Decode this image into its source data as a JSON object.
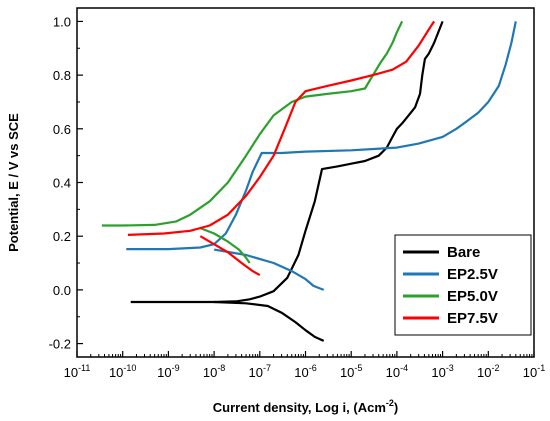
{
  "chart_data": {
    "type": "line",
    "title": "",
    "xlabel_main": "Current density, Log i, (Acm",
    "xlabel_sup": "-2",
    "xlabel_end": ")",
    "ylabel": "Potential, E / V vs SCE",
    "xscale": "log",
    "xlim": [
      1e-11,
      0.1
    ],
    "ylim": [
      -0.25,
      1.05
    ],
    "xticks": [
      {
        "v": -11,
        "base": "10",
        "exp": "-11"
      },
      {
        "v": -10,
        "base": "10",
        "exp": "-10"
      },
      {
        "v": -9,
        "base": "10",
        "exp": "-9"
      },
      {
        "v": -8,
        "base": "10",
        "exp": "-8"
      },
      {
        "v": -7,
        "base": "10",
        "exp": "-7"
      },
      {
        "v": -6,
        "base": "10",
        "exp": "-6"
      },
      {
        "v": -5,
        "base": "10",
        "exp": "-5"
      },
      {
        "v": -4,
        "base": "10",
        "exp": "-4"
      },
      {
        "v": -3,
        "base": "10",
        "exp": "-3"
      },
      {
        "v": -2,
        "base": "10",
        "exp": "-2"
      },
      {
        "v": -1,
        "base": "10",
        "exp": "-1"
      }
    ],
    "yticks": [
      {
        "v": -0.2,
        "label": "-0.2"
      },
      {
        "v": 0.0,
        "label": "0.0"
      },
      {
        "v": 0.2,
        "label": "0.2"
      },
      {
        "v": 0.4,
        "label": "0.4"
      },
      {
        "v": 0.6,
        "label": "0.6"
      },
      {
        "v": 0.8,
        "label": "0.8"
      },
      {
        "v": 1.0,
        "label": "1.0"
      }
    ],
    "grid": false,
    "legend_position": "bottom-right",
    "series": [
      {
        "name": "Bare",
        "color": "#000000",
        "points": [
          [
            1.5e-10,
            -0.045
          ],
          [
            1e-09,
            -0.045
          ],
          [
            1e-08,
            -0.045
          ],
          [
            3e-08,
            -0.043
          ],
          [
            6e-08,
            -0.035
          ],
          [
            1e-07,
            -0.025
          ],
          [
            2e-07,
            -0.005
          ],
          [
            4e-07,
            0.045
          ],
          [
            7e-07,
            0.13
          ],
          [
            1e-06,
            0.22
          ],
          [
            1.6e-06,
            0.33
          ],
          [
            2.3e-06,
            0.45
          ],
          [
            5e-06,
            0.46
          ],
          [
            1e-05,
            0.47
          ],
          [
            2e-05,
            0.48
          ],
          [
            4e-05,
            0.5
          ],
          [
            6e-05,
            0.53
          ],
          [
            8e-05,
            0.57
          ],
          [
            0.0001,
            0.6
          ],
          [
            0.00013,
            0.62
          ],
          [
            0.00018,
            0.65
          ],
          [
            0.00025,
            0.68
          ],
          [
            0.00032,
            0.73
          ],
          [
            0.00036,
            0.8
          ],
          [
            0.00041,
            0.86
          ],
          [
            0.0005,
            0.88
          ],
          [
            0.00065,
            0.92
          ],
          [
            0.00085,
            0.97
          ],
          [
            0.001,
            1.0
          ]
        ],
        "cathodic": [
          [
            1e-08,
            -0.045
          ],
          [
            5e-08,
            -0.05
          ],
          [
            1.5e-07,
            -0.06
          ],
          [
            3e-07,
            -0.085
          ],
          [
            6e-07,
            -0.12
          ],
          [
            1e-06,
            -0.15
          ],
          [
            1.6e-06,
            -0.175
          ],
          [
            2.5e-06,
            -0.19
          ]
        ]
      },
      {
        "name": "EP2.5V",
        "color": "#1f77b4",
        "points": [
          [
            1.2e-10,
            0.152
          ],
          [
            1e-09,
            0.152
          ],
          [
            5e-09,
            0.158
          ],
          [
            1e-08,
            0.17
          ],
          [
            1.8e-08,
            0.21
          ],
          [
            3e-08,
            0.28
          ],
          [
            5e-08,
            0.37
          ],
          [
            7e-08,
            0.44
          ],
          [
            1.1e-07,
            0.51
          ],
          [
            3e-07,
            0.51
          ],
          [
            1e-06,
            0.515
          ],
          [
            1e-05,
            0.52
          ],
          [
            0.0001,
            0.53
          ],
          [
            0.0003,
            0.545
          ],
          [
            0.001,
            0.57
          ],
          [
            0.002,
            0.6
          ],
          [
            0.0035,
            0.63
          ],
          [
            0.006,
            0.66
          ],
          [
            0.01,
            0.7
          ],
          [
            0.017,
            0.76
          ],
          [
            0.024,
            0.84
          ],
          [
            0.032,
            0.92
          ],
          [
            0.04,
            1.0
          ]
        ],
        "cathodic": [
          [
            1e-08,
            0.15
          ],
          [
            5e-08,
            0.13
          ],
          [
            2e-07,
            0.1
          ],
          [
            5e-07,
            0.07
          ],
          [
            1e-06,
            0.04
          ],
          [
            1.5e-06,
            0.015
          ],
          [
            2.5e-06,
            0.0
          ]
        ]
      },
      {
        "name": "EP5.0V",
        "color": "#2ca02c",
        "points": [
          [
            3.5e-11,
            0.24
          ],
          [
            1e-10,
            0.24
          ],
          [
            5e-10,
            0.242
          ],
          [
            1.5e-09,
            0.255
          ],
          [
            3e-09,
            0.28
          ],
          [
            8e-09,
            0.33
          ],
          [
            2e-08,
            0.4
          ],
          [
            5e-08,
            0.5
          ],
          [
            1e-07,
            0.58
          ],
          [
            2e-07,
            0.65
          ],
          [
            5e-07,
            0.7
          ],
          [
            1e-06,
            0.72
          ],
          [
            3e-06,
            0.73
          ],
          [
            1e-05,
            0.74
          ],
          [
            2e-05,
            0.75
          ],
          [
            3e-05,
            0.8
          ],
          [
            4.5e-05,
            0.85
          ],
          [
            6e-05,
            0.88
          ],
          [
            8e-05,
            0.92
          ],
          [
            0.0001,
            0.96
          ],
          [
            0.00013,
            1.0
          ]
        ],
        "cathodic": [
          [
            5e-09,
            0.23
          ],
          [
            1e-08,
            0.21
          ],
          [
            2e-08,
            0.18
          ],
          [
            3.5e-08,
            0.15
          ],
          [
            5e-08,
            0.12
          ],
          [
            6e-08,
            0.1
          ]
        ]
      },
      {
        "name": "EP7.5V",
        "color": "#ff0000",
        "points": [
          [
            1.3e-10,
            0.205
          ],
          [
            8e-10,
            0.21
          ],
          [
            3e-09,
            0.22
          ],
          [
            8e-09,
            0.24
          ],
          [
            2e-08,
            0.28
          ],
          [
            5e-08,
            0.35
          ],
          [
            1e-07,
            0.42
          ],
          [
            2e-07,
            0.5
          ],
          [
            3.5e-07,
            0.6
          ],
          [
            6e-07,
            0.7
          ],
          [
            1e-06,
            0.74
          ],
          [
            3e-06,
            0.76
          ],
          [
            1e-05,
            0.78
          ],
          [
            3e-05,
            0.8
          ],
          [
            8e-05,
            0.82
          ],
          [
            0.00016,
            0.85
          ],
          [
            0.0003,
            0.91
          ],
          [
            0.0005,
            0.97
          ],
          [
            0.00065,
            1.0
          ]
        ],
        "cathodic": [
          [
            5e-09,
            0.2
          ],
          [
            1e-08,
            0.17
          ],
          [
            2e-08,
            0.14
          ],
          [
            4e-08,
            0.1
          ],
          [
            7e-08,
            0.07
          ],
          [
            1e-07,
            0.055
          ]
        ]
      }
    ]
  }
}
